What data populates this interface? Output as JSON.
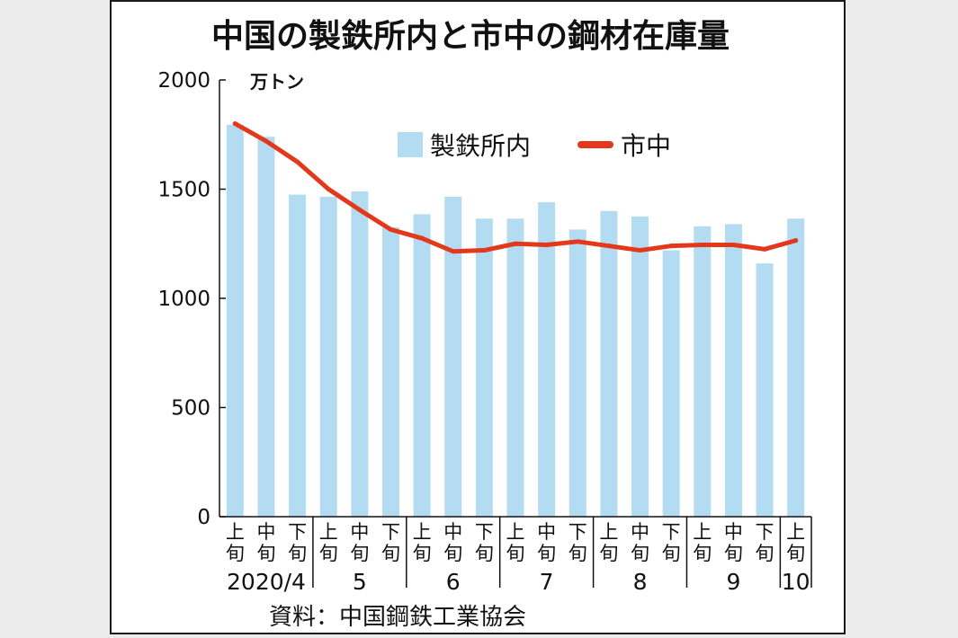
{
  "chart_data": {
    "type": "bar",
    "title": "中国の製鉄所内と市中の鋼材在庫量",
    "unit": "万トン",
    "source": "資料：中国鋼鉄工業協会",
    "ylim": [
      0,
      2000
    ],
    "yticks": [
      "0",
      "500",
      "1000",
      "1500",
      "2000"
    ],
    "ytick_values": [
      0,
      500,
      1000,
      1500,
      2000
    ],
    "categories": [
      "2020/4 上旬",
      "2020/4 中旬",
      "2020/4 下旬",
      "5 上旬",
      "5 中旬",
      "5 下旬",
      "6 上旬",
      "6 中旬",
      "6 下旬",
      "7 上旬",
      "7 中旬",
      "7 下旬",
      "8 上旬",
      "8 中旬",
      "8 下旬",
      "9 上旬",
      "9 中旬",
      "9 下旬",
      "10 上旬"
    ],
    "period_labels": [
      "上旬",
      "中旬",
      "下旬",
      "上旬",
      "中旬",
      "下旬",
      "上旬",
      "中旬",
      "下旬",
      "上旬",
      "中旬",
      "下旬",
      "上旬",
      "中旬",
      "下旬",
      "上旬",
      "中旬",
      "下旬",
      "上旬"
    ],
    "month_labels": [
      "2020/4",
      "5",
      "6",
      "7",
      "8",
      "9",
      "10"
    ],
    "month_spans": [
      3,
      3,
      3,
      3,
      3,
      3,
      1
    ],
    "grid": false,
    "legend_position": "top-center",
    "series": [
      {
        "name": "製鉄所内",
        "kind": "bar",
        "color": "#b3dcf3",
        "values": [
          1795,
          1740,
          1475,
          1465,
          1490,
          1325,
          1385,
          1465,
          1365,
          1365,
          1440,
          1315,
          1400,
          1375,
          1220,
          1330,
          1340,
          1160,
          1365
        ]
      },
      {
        "name": "市中",
        "kind": "line",
        "color": "#e3381b",
        "values": [
          1800,
          1720,
          1625,
          1500,
          1405,
          1315,
          1275,
          1215,
          1220,
          1250,
          1245,
          1260,
          1240,
          1220,
          1240,
          1245,
          1245,
          1225,
          1265
        ]
      }
    ]
  }
}
